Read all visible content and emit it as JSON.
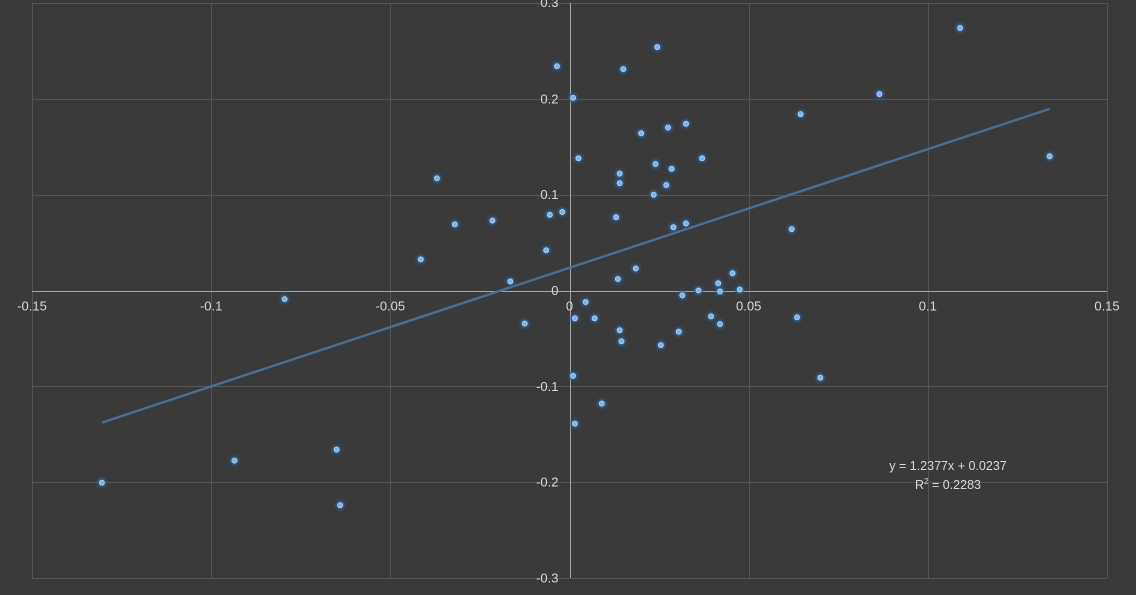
{
  "chart_data": {
    "type": "scatter",
    "title": "",
    "xlabel": "",
    "ylabel": "",
    "xlim": [
      -0.15,
      0.15
    ],
    "ylim": [
      -0.3,
      0.3
    ],
    "x_ticks": [
      -0.15,
      -0.1,
      -0.05,
      0,
      0.05,
      0.1,
      0.15
    ],
    "y_ticks": [
      -0.3,
      -0.2,
      -0.1,
      0,
      0.1,
      0.2,
      0.3
    ],
    "x_tick_labels": [
      "-0.15",
      "-0.1",
      "-0.05",
      "0",
      "0.05",
      "0.1",
      "0.15"
    ],
    "y_tick_labels": [
      "-0.3",
      "-0.2",
      "-0.1",
      "0",
      "0.1",
      "0.2",
      "0.3"
    ],
    "grid": true,
    "legend": "none",
    "colors": {
      "background": "#3a3a3a",
      "grid": "#555555",
      "axis": "#a6a6a6",
      "point": "#7fb2e5",
      "point_glow": "#2f5f8f",
      "trendline": "#4a6e93",
      "text": "#d9d9d9"
    },
    "series": [
      {
        "points": [
          [
            -0.1305,
            -0.2005
          ],
          [
            -0.0935,
            -0.1775
          ],
          [
            -0.065,
            -0.166
          ],
          [
            -0.064,
            -0.224
          ],
          [
            -0.0795,
            -0.009
          ],
          [
            -0.0415,
            0.0325
          ],
          [
            -0.037,
            0.117
          ],
          [
            -0.032,
            0.069
          ],
          [
            -0.0215,
            0.073
          ],
          [
            -0.0165,
            0.0095
          ],
          [
            -0.0125,
            -0.0345
          ],
          [
            -0.0065,
            0.042
          ],
          [
            -0.0055,
            0.079
          ],
          [
            -0.002,
            0.082
          ],
          [
            -0.0035,
            0.234
          ],
          [
            0.001,
            0.201
          ],
          [
            0.0025,
            0.138
          ],
          [
            0.0015,
            -0.029
          ],
          [
            0.0045,
            -0.012
          ],
          [
            0.007,
            -0.029
          ],
          [
            0.001,
            -0.089
          ],
          [
            0.0015,
            -0.139
          ],
          [
            0.009,
            -0.118
          ],
          [
            0.013,
            0.0765
          ],
          [
            0.0135,
            0.012
          ],
          [
            0.014,
            -0.0415
          ],
          [
            0.0145,
            -0.053
          ],
          [
            0.014,
            0.112
          ],
          [
            0.014,
            0.122
          ],
          [
            0.015,
            0.231
          ],
          [
            0.0185,
            0.023
          ],
          [
            0.02,
            0.164
          ],
          [
            0.0235,
            0.1
          ],
          [
            0.024,
            0.132
          ],
          [
            0.0245,
            0.254
          ],
          [
            0.0255,
            -0.057
          ],
          [
            0.027,
            0.11
          ],
          [
            0.0275,
            0.17
          ],
          [
            0.0285,
            0.127
          ],
          [
            0.029,
            0.066
          ],
          [
            0.0305,
            -0.043
          ],
          [
            0.0315,
            -0.005
          ],
          [
            0.0325,
            0.07
          ],
          [
            0.0325,
            0.174
          ],
          [
            0.036,
            0.0
          ],
          [
            0.037,
            0.138
          ],
          [
            0.0395,
            -0.027
          ],
          [
            0.0415,
            0.0075
          ],
          [
            0.042,
            -0.001
          ],
          [
            0.042,
            -0.035
          ],
          [
            0.0455,
            0.018
          ],
          [
            0.0475,
            0.001
          ],
          [
            0.062,
            0.064
          ],
          [
            0.0635,
            -0.028
          ],
          [
            0.0645,
            0.184
          ],
          [
            0.07,
            -0.091
          ],
          [
            0.0865,
            0.205
          ],
          [
            0.109,
            0.274
          ],
          [
            0.134,
            0.14
          ]
        ]
      }
    ],
    "trendline": {
      "slope": 1.2377,
      "intercept": 0.0237,
      "x_start": -0.1305,
      "x_end": 0.134,
      "equation_text": "y = 1.2377x + 0.0237",
      "r2_prefix": "R",
      "r2_exponent": "2",
      "r2_value": " = 0.2283"
    }
  }
}
